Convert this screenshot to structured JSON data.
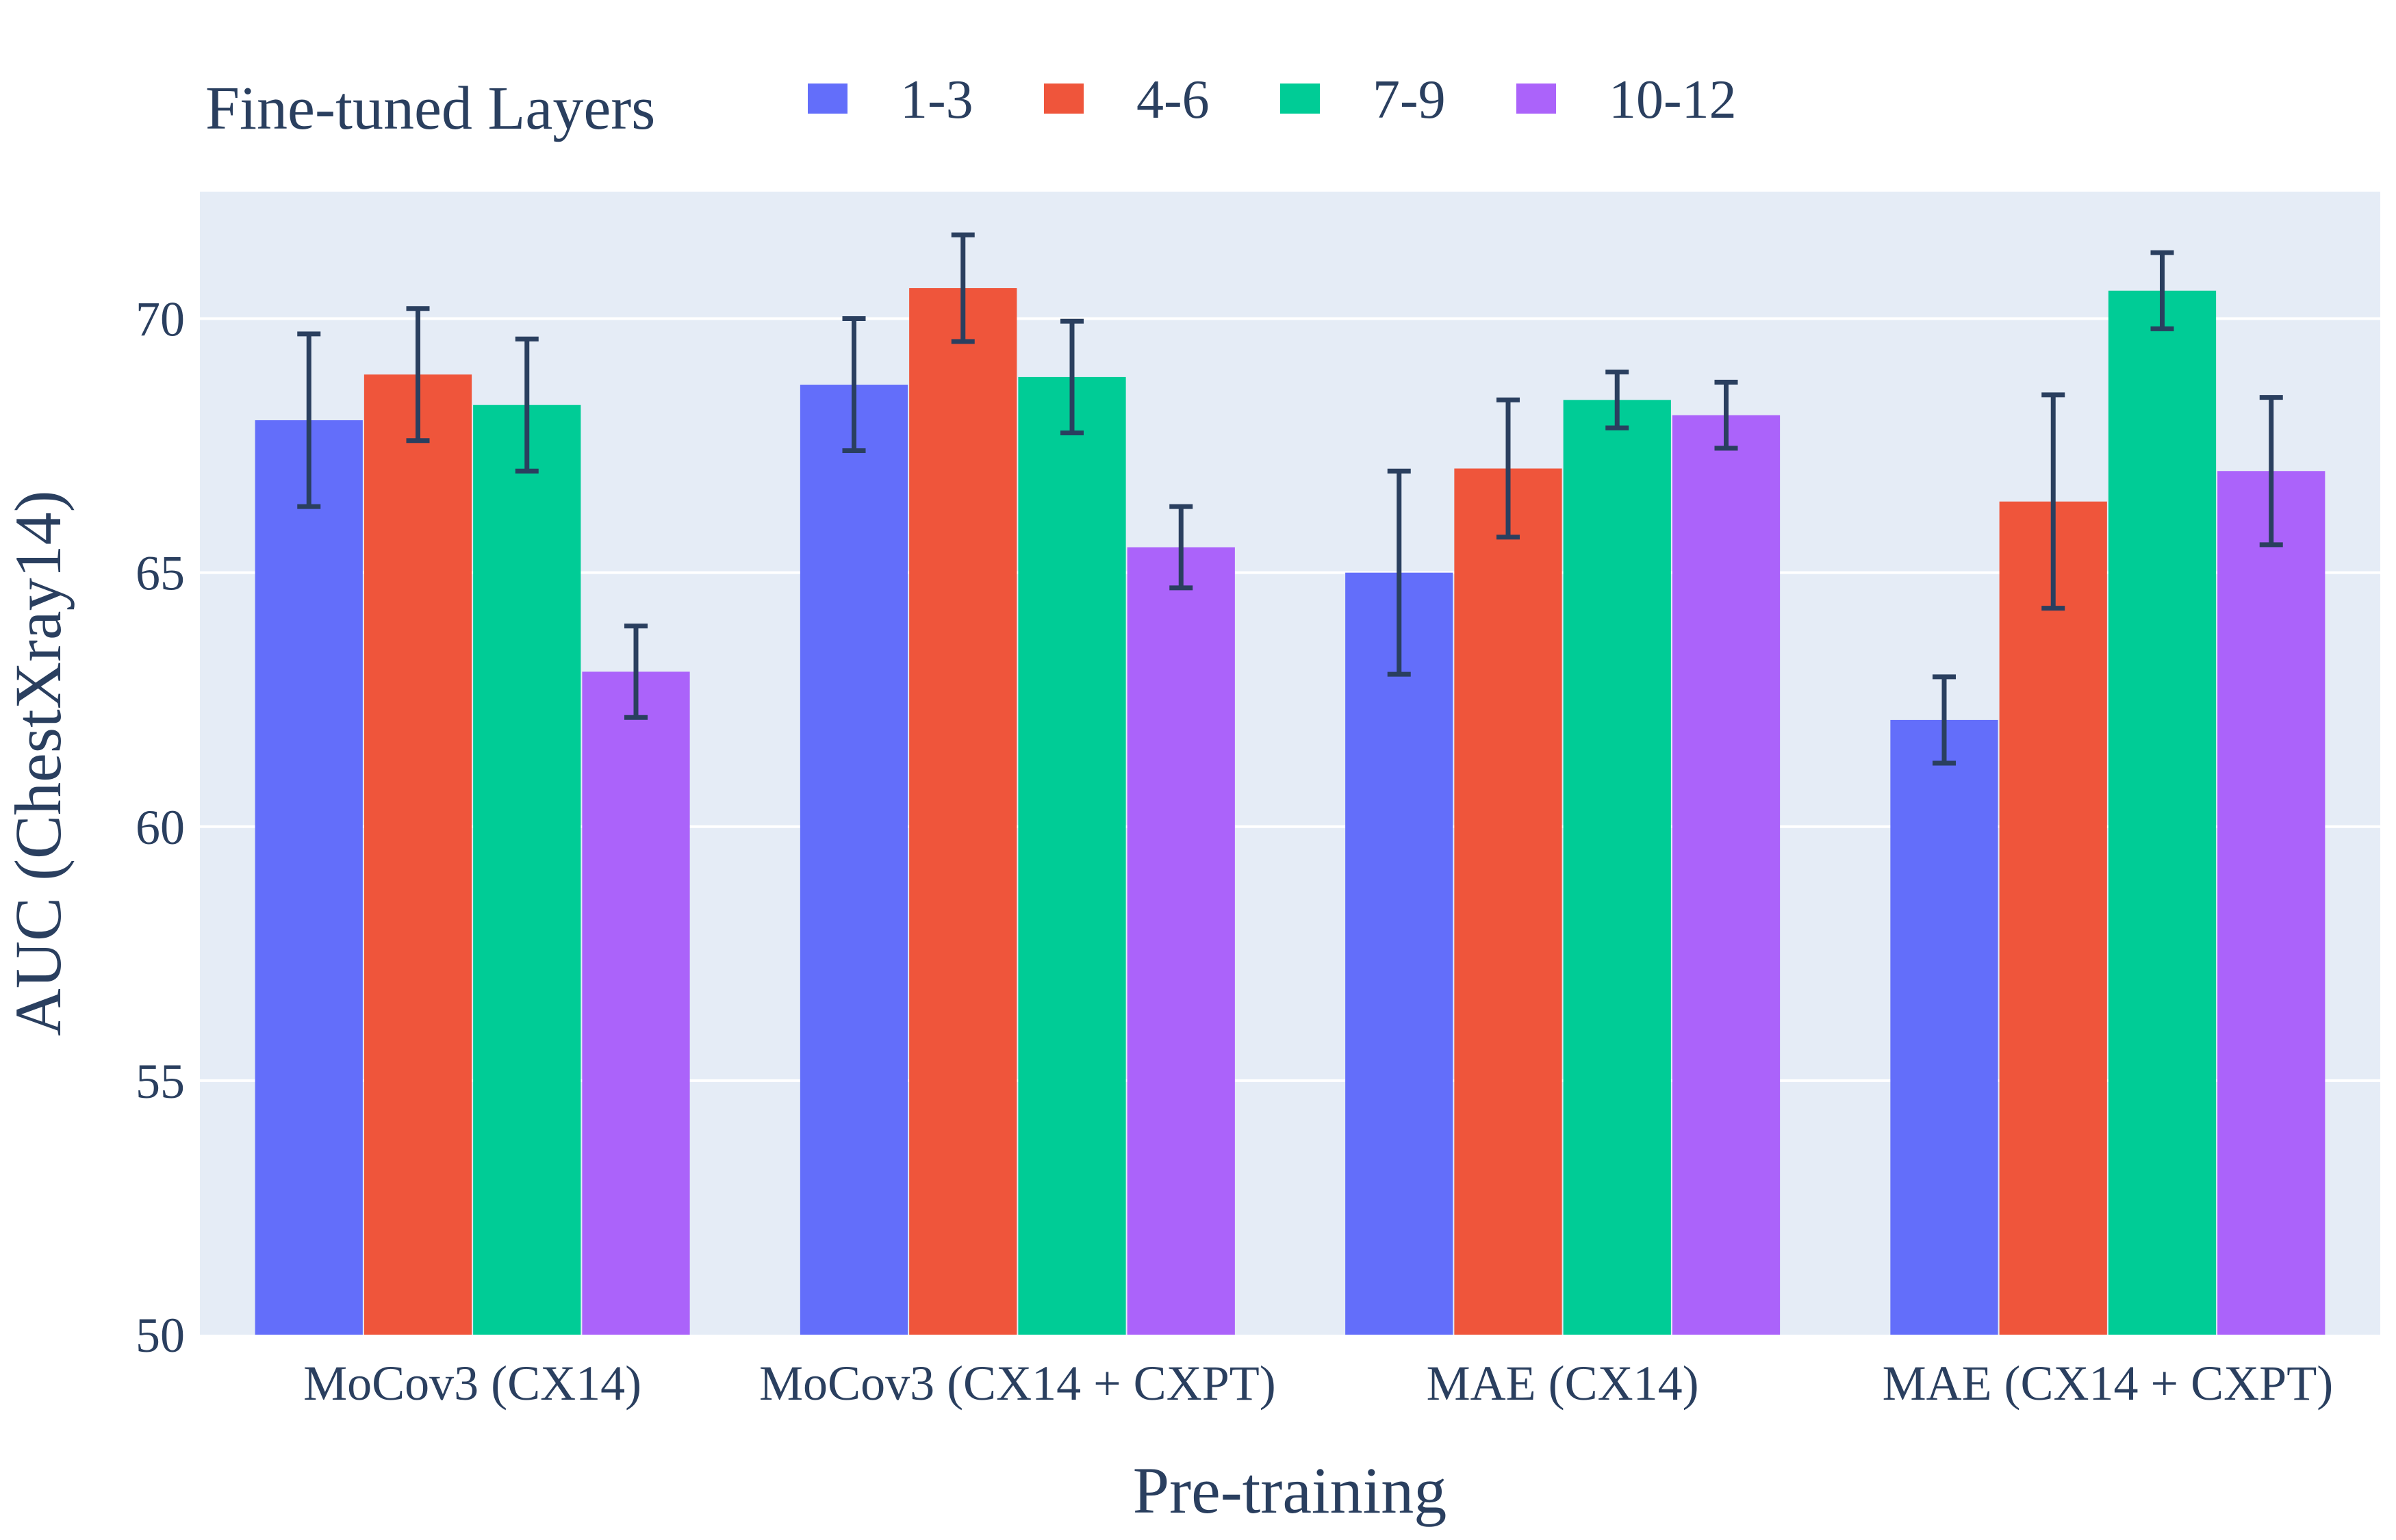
{
  "chart_data": {
    "type": "bar",
    "title": "",
    "xlabel": "Pre-training",
    "ylabel": "AUC (ChestXray14)",
    "ylim": [
      50,
      72.5
    ],
    "yticks": [
      50,
      55,
      60,
      65,
      70
    ],
    "grid": true,
    "legend_title": "Fine-tuned Layers",
    "legend_position": "top",
    "categories": [
      "MoCov3 (CX14)",
      "MoCov3 (CX14 + CXPT)",
      "MAE (CX14)",
      "MAE (CX14 + CXPT)"
    ],
    "series": [
      {
        "name": "1-3",
        "color": "#636efa",
        "values": [
          68.0,
          68.7,
          65.0,
          62.1
        ],
        "errors": [
          1.7,
          1.3,
          2.0,
          0.85
        ]
      },
      {
        "name": "4-6",
        "color": "#ef553b",
        "values": [
          68.9,
          70.6,
          67.05,
          66.4
        ],
        "errors": [
          1.3,
          1.05,
          1.35,
          2.1
        ]
      },
      {
        "name": "7-9",
        "color": "#00cc96",
        "values": [
          68.3,
          68.85,
          68.4,
          70.55
        ],
        "errors": [
          1.3,
          1.1,
          0.55,
          0.75
        ]
      },
      {
        "name": "10-12",
        "color": "#ab63fa",
        "values": [
          63.05,
          65.5,
          68.1,
          67.0
        ],
        "errors": [
          0.9,
          0.8,
          0.65,
          1.45
        ]
      }
    ],
    "error_bar_color": "#2a3f5f",
    "plot_background": "#e5ecf6",
    "gridline_color": "#ffffff"
  }
}
